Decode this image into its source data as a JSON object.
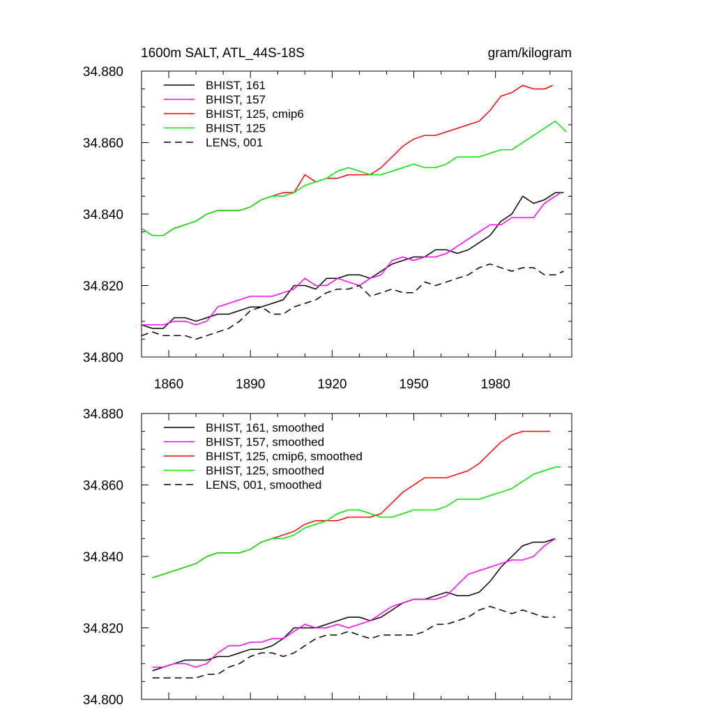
{
  "figure": {
    "title": "1600m SALT, ATL_44S-18S",
    "units": "gram/kilogram"
  },
  "colors": {
    "black": "#000000",
    "magenta": "#ff00ff",
    "red": "#ff0000",
    "green": "#00e600"
  },
  "chart_data": [
    {
      "type": "line",
      "title": "1600m SALT, ATL_44S-18S",
      "units_label": "gram/kilogram",
      "xlim": [
        1850,
        2008
      ],
      "ylim": [
        34.8,
        34.88
      ],
      "x_ticks": [
        1860,
        1890,
        1920,
        1950,
        1980
      ],
      "x_tick_labels": [
        "1860",
        "1890",
        "1920",
        "1950",
        "1980"
      ],
      "y_ticks": [
        34.8,
        34.82,
        34.84,
        34.86,
        34.88
      ],
      "y_tick_labels": [
        "34.800",
        "34.820",
        "34.840",
        "34.860",
        "34.880"
      ],
      "legend_position": "top-left",
      "series": [
        {
          "name": "BHIST, 161",
          "color": "#000000",
          "dash": "solid",
          "x": [
            1850,
            1854,
            1858,
            1862,
            1866,
            1870,
            1874,
            1878,
            1882,
            1886,
            1890,
            1894,
            1898,
            1902,
            1906,
            1910,
            1914,
            1918,
            1922,
            1926,
            1930,
            1934,
            1938,
            1942,
            1946,
            1950,
            1954,
            1958,
            1962,
            1966,
            1970,
            1974,
            1978,
            1982,
            1986,
            1990,
            1994,
            1998,
            2002,
            2005
          ],
          "y": [
            34.809,
            34.808,
            34.808,
            34.811,
            34.811,
            34.81,
            34.811,
            34.812,
            34.812,
            34.813,
            34.814,
            34.814,
            34.815,
            34.816,
            34.82,
            34.82,
            34.819,
            34.822,
            34.822,
            34.823,
            34.823,
            34.822,
            34.824,
            34.826,
            34.827,
            34.828,
            34.828,
            34.83,
            34.83,
            34.829,
            34.83,
            34.832,
            34.834,
            34.838,
            34.84,
            34.845,
            34.843,
            34.844,
            34.846,
            34.846
          ]
        },
        {
          "name": "BHIST, 157",
          "color": "#ff00ff",
          "dash": "solid",
          "x": [
            1850,
            1854,
            1858,
            1862,
            1866,
            1870,
            1874,
            1878,
            1882,
            1886,
            1890,
            1894,
            1898,
            1902,
            1906,
            1910,
            1914,
            1918,
            1922,
            1926,
            1930,
            1934,
            1938,
            1942,
            1946,
            1950,
            1954,
            1958,
            1962,
            1966,
            1970,
            1974,
            1978,
            1982,
            1986,
            1990,
            1994,
            1998,
            2002,
            2004
          ],
          "y": [
            34.809,
            34.809,
            34.809,
            34.81,
            34.81,
            34.809,
            34.81,
            34.814,
            34.815,
            34.816,
            34.817,
            34.817,
            34.817,
            34.818,
            34.819,
            34.822,
            34.82,
            34.82,
            34.822,
            34.821,
            34.82,
            34.822,
            34.823,
            34.827,
            34.828,
            34.827,
            34.828,
            34.828,
            34.829,
            34.831,
            34.833,
            34.835,
            34.837,
            34.837,
            34.839,
            34.839,
            34.839,
            34.843,
            34.845,
            34.846
          ]
        },
        {
          "name": "BHIST, 125, cmip6",
          "color": "#ff0000",
          "dash": "solid",
          "x": [
            1850,
            1854,
            1858,
            1862,
            1866,
            1870,
            1874,
            1878,
            1882,
            1886,
            1890,
            1894,
            1898,
            1902,
            1906,
            1910,
            1914,
            1918,
            1922,
            1926,
            1930,
            1934,
            1938,
            1942,
            1946,
            1950,
            1954,
            1958,
            1962,
            1966,
            1970,
            1974,
            1978,
            1982,
            1986,
            1990,
            1994,
            1998,
            2001
          ],
          "y": [
            34.836,
            34.834,
            34.834,
            34.836,
            34.837,
            34.838,
            34.84,
            34.841,
            34.841,
            34.841,
            34.842,
            34.844,
            34.845,
            34.846,
            34.846,
            34.851,
            34.849,
            34.85,
            34.85,
            34.851,
            34.851,
            34.851,
            34.853,
            34.856,
            34.859,
            34.861,
            34.862,
            34.862,
            34.863,
            34.864,
            34.865,
            34.866,
            34.869,
            34.873,
            34.874,
            34.876,
            34.875,
            34.875,
            34.876
          ]
        },
        {
          "name": "BHIST, 125",
          "color": "#00e600",
          "dash": "solid",
          "x": [
            1850,
            1854,
            1858,
            1862,
            1866,
            1870,
            1874,
            1878,
            1882,
            1886,
            1890,
            1894,
            1898,
            1902,
            1906,
            1910,
            1914,
            1918,
            1922,
            1926,
            1930,
            1934,
            1938,
            1942,
            1946,
            1950,
            1954,
            1958,
            1962,
            1966,
            1970,
            1974,
            1978,
            1982,
            1986,
            1990,
            1994,
            1998,
            2002,
            2006
          ],
          "y": [
            34.836,
            34.834,
            34.834,
            34.836,
            34.837,
            34.838,
            34.84,
            34.841,
            34.841,
            34.841,
            34.842,
            34.844,
            34.845,
            34.845,
            34.846,
            34.848,
            34.849,
            34.85,
            34.852,
            34.853,
            34.852,
            34.851,
            34.851,
            34.852,
            34.853,
            34.854,
            34.853,
            34.853,
            34.854,
            34.856,
            34.856,
            34.856,
            34.857,
            34.858,
            34.858,
            34.86,
            34.862,
            34.864,
            34.866,
            34.863
          ]
        },
        {
          "name": "LENS, 001",
          "color": "#000000",
          "dash": "dashed",
          "x": [
            1850,
            1854,
            1858,
            1862,
            1866,
            1870,
            1874,
            1878,
            1882,
            1886,
            1890,
            1894,
            1898,
            1902,
            1906,
            1910,
            1914,
            1918,
            1922,
            1926,
            1930,
            1934,
            1938,
            1942,
            1946,
            1950,
            1954,
            1958,
            1962,
            1966,
            1970,
            1974,
            1978,
            1982,
            1986,
            1990,
            1994,
            1998,
            2002,
            2005
          ],
          "y": [
            34.806,
            34.807,
            34.806,
            34.806,
            34.806,
            34.805,
            34.806,
            34.807,
            34.808,
            34.81,
            34.813,
            34.814,
            34.812,
            34.812,
            34.814,
            34.815,
            34.816,
            34.818,
            34.819,
            34.819,
            34.82,
            34.817,
            34.818,
            34.819,
            34.818,
            34.818,
            34.821,
            34.82,
            34.821,
            34.822,
            34.823,
            34.825,
            34.826,
            34.825,
            34.824,
            34.825,
            34.825,
            34.823,
            34.823,
            34.824
          ]
        }
      ]
    },
    {
      "type": "line",
      "xlim": [
        1850,
        2008
      ],
      "ylim": [
        34.8,
        34.88
      ],
      "x_ticks": [
        1860,
        1890,
        1920,
        1950,
        1980
      ],
      "y_ticks": [
        34.8,
        34.82,
        34.84,
        34.86,
        34.88
      ],
      "y_tick_labels": [
        "34.800",
        "34.820",
        "34.840",
        "34.860",
        "34.880"
      ],
      "legend_position": "top-left",
      "series": [
        {
          "name": "BHIST, 161, smoothed",
          "color": "#000000",
          "dash": "solid",
          "x": [
            1854,
            1858,
            1862,
            1866,
            1870,
            1874,
            1878,
            1882,
            1886,
            1890,
            1894,
            1898,
            1902,
            1906,
            1910,
            1914,
            1918,
            1922,
            1926,
            1930,
            1934,
            1938,
            1942,
            1946,
            1950,
            1954,
            1958,
            1962,
            1966,
            1970,
            1974,
            1978,
            1982,
            1986,
            1990,
            1994,
            1998,
            2002
          ],
          "y": [
            34.808,
            34.809,
            34.81,
            34.811,
            34.811,
            34.811,
            34.812,
            34.812,
            34.813,
            34.814,
            34.814,
            34.815,
            34.817,
            34.82,
            34.82,
            34.82,
            34.821,
            34.822,
            34.823,
            34.823,
            34.822,
            34.823,
            34.825,
            34.827,
            34.828,
            34.828,
            34.829,
            34.83,
            34.829,
            34.829,
            34.83,
            34.833,
            34.837,
            34.84,
            34.843,
            34.844,
            34.844,
            34.845
          ]
        },
        {
          "name": "BHIST, 157, smoothed",
          "color": "#ff00ff",
          "dash": "solid",
          "x": [
            1854,
            1858,
            1862,
            1866,
            1870,
            1874,
            1878,
            1882,
            1886,
            1890,
            1894,
            1898,
            1902,
            1906,
            1910,
            1914,
            1918,
            1922,
            1926,
            1930,
            1934,
            1938,
            1942,
            1946,
            1950,
            1954,
            1958,
            1962,
            1966,
            1970,
            1974,
            1978,
            1982,
            1986,
            1990,
            1994,
            1998,
            2002
          ],
          "y": [
            34.809,
            34.809,
            34.81,
            34.81,
            34.809,
            34.81,
            34.813,
            34.815,
            34.815,
            34.816,
            34.816,
            34.817,
            34.817,
            34.819,
            34.821,
            34.82,
            34.82,
            34.821,
            34.82,
            34.821,
            34.822,
            34.824,
            34.826,
            34.827,
            34.828,
            34.828,
            34.828,
            34.829,
            34.832,
            34.835,
            34.836,
            34.837,
            34.838,
            34.839,
            34.839,
            34.84,
            34.843,
            34.845
          ]
        },
        {
          "name": "BHIST, 125, cmip6, smoothed",
          "color": "#ff0000",
          "dash": "solid",
          "x": [
            1854,
            1858,
            1862,
            1866,
            1870,
            1874,
            1878,
            1882,
            1886,
            1890,
            1894,
            1898,
            1902,
            1906,
            1910,
            1914,
            1918,
            1922,
            1926,
            1930,
            1934,
            1938,
            1942,
            1946,
            1950,
            1954,
            1958,
            1962,
            1966,
            1970,
            1974,
            1978,
            1982,
            1986,
            1990,
            1994,
            1998,
            2000
          ],
          "y": [
            34.834,
            34.835,
            34.836,
            34.837,
            34.838,
            34.84,
            34.841,
            34.841,
            34.841,
            34.842,
            34.844,
            34.845,
            34.846,
            34.847,
            34.849,
            34.85,
            34.85,
            34.85,
            34.851,
            34.851,
            34.851,
            34.852,
            34.855,
            34.858,
            34.86,
            34.862,
            34.862,
            34.862,
            34.863,
            34.864,
            34.866,
            34.869,
            34.872,
            34.874,
            34.875,
            34.875,
            34.875,
            34.875
          ]
        },
        {
          "name": "BHIST, 125, smoothed",
          "color": "#00e600",
          "dash": "solid",
          "x": [
            1854,
            1858,
            1862,
            1866,
            1870,
            1874,
            1878,
            1882,
            1886,
            1890,
            1894,
            1898,
            1902,
            1906,
            1910,
            1914,
            1918,
            1922,
            1926,
            1930,
            1934,
            1938,
            1942,
            1946,
            1950,
            1954,
            1958,
            1962,
            1966,
            1970,
            1974,
            1978,
            1982,
            1986,
            1990,
            1994,
            1998,
            2002,
            2004
          ],
          "y": [
            34.834,
            34.835,
            34.836,
            34.837,
            34.838,
            34.84,
            34.841,
            34.841,
            34.841,
            34.842,
            34.844,
            34.845,
            34.845,
            34.846,
            34.848,
            34.849,
            34.85,
            34.852,
            34.853,
            34.853,
            34.852,
            34.851,
            34.851,
            34.852,
            34.853,
            34.853,
            34.853,
            34.854,
            34.856,
            34.856,
            34.856,
            34.857,
            34.858,
            34.859,
            34.861,
            34.863,
            34.864,
            34.865,
            34.865
          ]
        },
        {
          "name": "LENS, 001, smoothed",
          "color": "#000000",
          "dash": "dashed",
          "x": [
            1854,
            1858,
            1862,
            1866,
            1870,
            1874,
            1878,
            1882,
            1886,
            1890,
            1894,
            1898,
            1902,
            1906,
            1910,
            1914,
            1918,
            1922,
            1926,
            1930,
            1934,
            1938,
            1942,
            1946,
            1950,
            1954,
            1958,
            1962,
            1966,
            1970,
            1974,
            1978,
            1982,
            1986,
            1990,
            1994,
            1998,
            2002
          ],
          "y": [
            34.806,
            34.806,
            34.806,
            34.806,
            34.806,
            34.807,
            34.807,
            34.809,
            34.81,
            34.812,
            34.813,
            34.813,
            34.812,
            34.813,
            34.815,
            34.817,
            34.818,
            34.818,
            34.819,
            34.818,
            34.817,
            34.818,
            34.818,
            34.818,
            34.818,
            34.819,
            34.821,
            34.821,
            34.822,
            34.823,
            34.825,
            34.826,
            34.825,
            34.824,
            34.825,
            34.824,
            34.823,
            34.823
          ]
        }
      ]
    }
  ]
}
